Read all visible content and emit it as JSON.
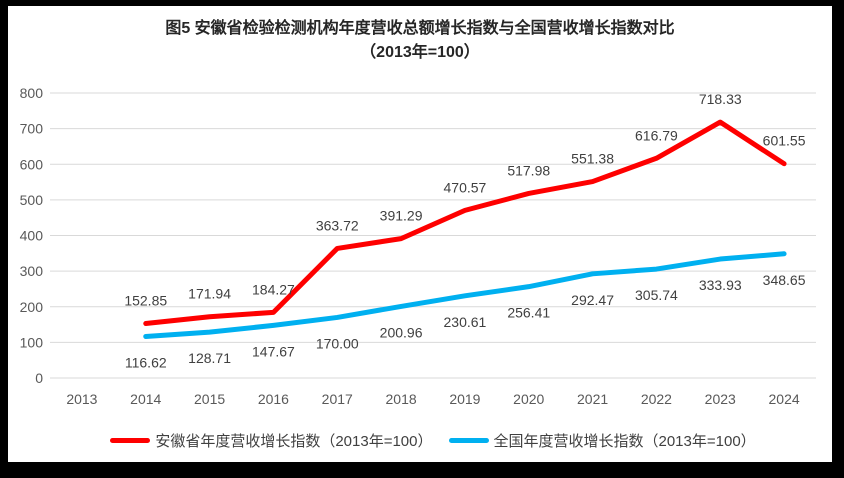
{
  "title": {
    "line1": "图5  安徽省检验检测机构年度营收总额增长指数与全国营收增长指数对比",
    "line2": "（2013年=100）"
  },
  "chart_data": {
    "type": "line",
    "title": "图5 安徽省检验检测机构年度营收总额增长指数与全国营收增长指数对比（2013年=100）",
    "categories": [
      "2013",
      "2014",
      "2015",
      "2016",
      "2017",
      "2018",
      "2019",
      "2020",
      "2021",
      "2022",
      "2023",
      "2024"
    ],
    "series": [
      {
        "name": "安徽省年度营收增长指数（2013年=100）",
        "color": "#fe0000",
        "first_category": "2014",
        "values": [
          152.85,
          171.94,
          184.27,
          363.72,
          391.29,
          470.57,
          517.98,
          551.38,
          616.79,
          718.33,
          601.55
        ]
      },
      {
        "name": "全国年度营收增长指数（2013年=100）",
        "color": "#00b0f0",
        "first_category": "2014",
        "values": [
          116.62,
          128.71,
          147.67,
          170.0,
          200.96,
          230.61,
          256.41,
          292.47,
          305.74,
          333.93,
          348.65
        ]
      }
    ],
    "ylim": [
      0,
      800
    ],
    "ytick_step": 100,
    "grid": "horizontal-only",
    "data_labels": true,
    "data_label_decimals": 2,
    "legend_position": "bottom",
    "colors": {
      "gridline": "#d9d9d9",
      "axis_label": "#595959",
      "data_label": "#404040",
      "title": "#262626",
      "frame": "#000000",
      "background": "#ffffff"
    }
  }
}
